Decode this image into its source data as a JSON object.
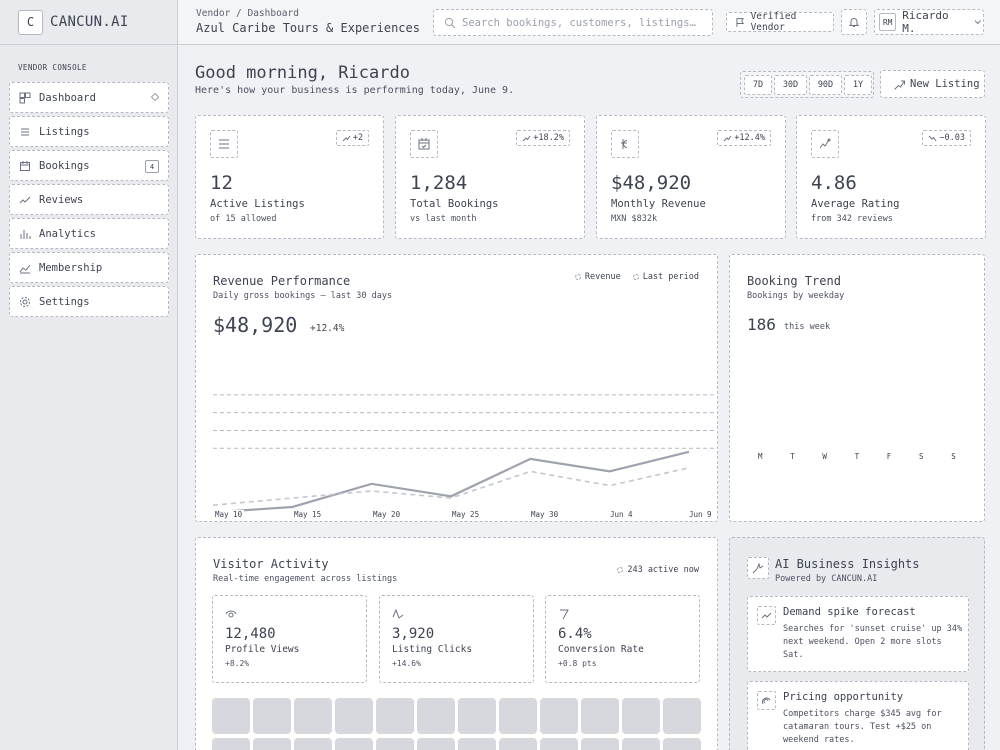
{
  "brand": {
    "logo_letter": "C",
    "name": "CANCUN.AI"
  },
  "header": {
    "breadcrumb": "Vendor / Dashboard",
    "business_name": "Azul Caribe Tours & Experiences",
    "search_placeholder": "Search bookings, customers, listings…",
    "verified_label": "Verified Vendor",
    "user_initials": "RM",
    "user_name": "Ricardo M."
  },
  "sidebar": {
    "section_title": "VENDOR CONSOLE",
    "items": [
      {
        "label": "Dashboard",
        "icon": "dashboard-icon"
      },
      {
        "label": "Listings",
        "icon": "list-icon"
      },
      {
        "label": "Bookings",
        "icon": "calendar-icon",
        "badge": "4"
      },
      {
        "label": "Reviews",
        "icon": "star-icon"
      },
      {
        "label": "Analytics",
        "icon": "bar-chart-icon"
      },
      {
        "label": "Membership",
        "icon": "membership-icon"
      },
      {
        "label": "Settings",
        "icon": "gear-icon"
      }
    ]
  },
  "main": {
    "greeting": "Good morning, Ricardo",
    "subtitle": "Here's how your business is performing today, June 9.",
    "ranges": [
      "7D",
      "30D",
      "90D",
      "1Y"
    ],
    "new_listing_label": "New Listing"
  },
  "kpis": [
    {
      "icon": "list-icon",
      "delta": "+2",
      "value": "12",
      "label": "Active Listings",
      "sub": "of 15 allowed"
    },
    {
      "icon": "calendar-check-icon",
      "delta": "+18.2%",
      "value": "1,284",
      "label": "Total Bookings",
      "sub": "vs last month"
    },
    {
      "icon": "peso-icon",
      "delta": "+12.4%",
      "value": "$48,920",
      "label": "Monthly Revenue",
      "sub": "MXN $832k"
    },
    {
      "icon": "rating-icon",
      "delta": "−0.03",
      "value": "4.86",
      "label": "Average Rating",
      "sub": "from 342 reviews"
    }
  ],
  "revenue": {
    "title": "Revenue Performance",
    "subtitle": "Daily gross bookings — last 30 days",
    "total": "$48,920",
    "change": "+12.4%",
    "legend": [
      "Revenue",
      "Last period"
    ],
    "x_labels": [
      "May 10",
      "May 15",
      "May 20",
      "May 25",
      "May 30",
      "Jun 4",
      "Jun 9"
    ]
  },
  "chart_data": {
    "type": "line",
    "x": [
      "May 10",
      "May 15",
      "May 20",
      "May 25",
      "May 30",
      "Jun 4",
      "Jun 9"
    ],
    "series": [
      {
        "name": "Revenue",
        "values": [
          6,
          9,
          22,
          15,
          36,
          29,
          40
        ]
      },
      {
        "name": "Last period",
        "values": [
          10,
          14,
          18,
          14,
          29,
          21,
          31
        ]
      }
    ],
    "ylim": [
      0,
      100
    ],
    "grid": true
  },
  "trend": {
    "title": "Booking Trend",
    "subtitle": "Bookings by weekday",
    "total": "186",
    "total_label": "this week",
    "days": [
      "M",
      "T",
      "W",
      "T",
      "F",
      "S",
      "S"
    ]
  },
  "visitors": {
    "title": "Visitor Activity",
    "subtitle": "Real-time engagement across listings",
    "live": "243 active now",
    "tiles": [
      {
        "icon": "eye-icon",
        "value": "12,480",
        "label": "Profile Views",
        "sub": "+8.2%"
      },
      {
        "icon": "click-icon",
        "value": "3,920",
        "label": "Listing Clicks",
        "sub": "+14.6%"
      },
      {
        "icon": "conversion-icon",
        "value": "6.4%",
        "label": "Conversion Rate",
        "sub": "+0.8 pts"
      }
    ]
  },
  "insights": {
    "title": "AI Business Insights",
    "subtitle": "Powered by CANCUN.AI",
    "cards": [
      {
        "icon": "trend-up-icon",
        "title": "Demand spike forecast",
        "body": "Searches for 'sunset cruise' up 34% next weekend. Open 2 more slots Sat."
      },
      {
        "icon": "price-tag-icon",
        "title": "Pricing opportunity",
        "body": "Competitors charge $345 avg for catamaran tours. Test +$25 on weekend rates."
      }
    ]
  }
}
